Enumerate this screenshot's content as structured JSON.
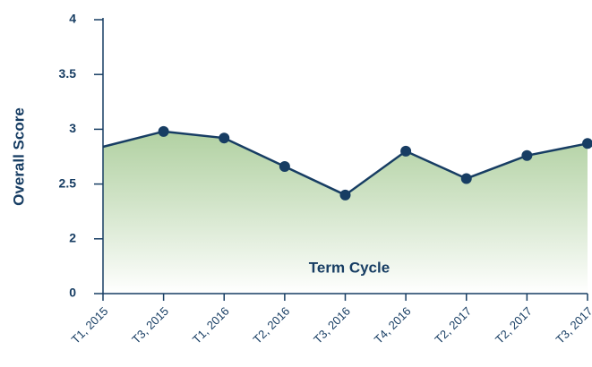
{
  "chart_data": {
    "type": "area-line",
    "x_label": "Term Cycle",
    "y_label": "Overall Score",
    "categories": [
      "T1, 2015",
      "T3, 2015",
      "T1, 2016",
      "T2, 2016",
      "T3, 2016",
      "T4, 2016",
      "T2, 2017",
      "T2, 2017",
      "T3, 2017"
    ],
    "values": [
      2.84,
      2.98,
      2.92,
      2.66,
      2.4,
      2.8,
      2.55,
      2.76,
      2.87
    ],
    "color": "#173d63",
    "fill_color": "#a9cc98",
    "ylim": [
      0,
      4
    ],
    "yticks": [
      0,
      2,
      2.5,
      3,
      3.5,
      4
    ],
    "grid": false
  }
}
